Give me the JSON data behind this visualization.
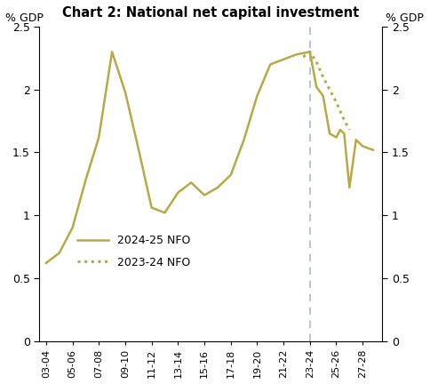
{
  "title": "Chart 2: National net capital investment",
  "ylabel_left": "% GDP",
  "ylabel_right": "% GDP",
  "ylim": [
    0,
    2.5
  ],
  "yticks": [
    0,
    0.5,
    1,
    1.5,
    2,
    2.5
  ],
  "color": "#b5aa45",
  "vline_x": 20,
  "vline_color": "#aab8cc",
  "x_labels": [
    "03-04",
    "05-06",
    "07-08",
    "09-10",
    "11-12",
    "13-14",
    "15-16",
    "17-18",
    "19-20",
    "21-22",
    "23-24",
    "25-26",
    "27-28"
  ],
  "x_tick_positions": [
    0,
    2,
    4,
    6,
    8,
    10,
    12,
    14,
    16,
    18,
    20,
    22,
    24
  ],
  "xlim": [
    -0.5,
    25.5
  ],
  "solid_x": [
    0,
    1,
    2,
    3,
    4,
    5,
    6,
    7,
    8,
    9,
    10,
    11,
    12,
    13,
    14,
    15,
    16,
    17,
    18,
    19,
    20
  ],
  "solid_y": [
    0.62,
    0.7,
    0.9,
    1.28,
    1.62,
    2.3,
    1.98,
    1.53,
    1.06,
    1.02,
    1.18,
    1.26,
    1.16,
    1.22,
    1.32,
    1.6,
    1.95,
    2.2,
    2.24,
    2.28,
    2.3
  ],
  "dotted_x": [
    19.5,
    20.0,
    20.5,
    21.0,
    21.5,
    22.0,
    22.5,
    23.0
  ],
  "dotted_y": [
    2.26,
    2.3,
    2.22,
    2.1,
    2.0,
    1.9,
    1.78,
    1.68
  ],
  "after_x": [
    20,
    20.5,
    21.0,
    21.5,
    22.0,
    22.3,
    22.6,
    23.0,
    23.5,
    24.0,
    24.5,
    24.8
  ],
  "after_y": [
    2.3,
    2.02,
    1.95,
    1.65,
    1.62,
    1.68,
    1.65,
    1.22,
    1.6,
    1.55,
    1.53,
    1.52
  ],
  "legend_solid": "2024-25 NFO",
  "legend_dotted": "2023-24 NFO"
}
